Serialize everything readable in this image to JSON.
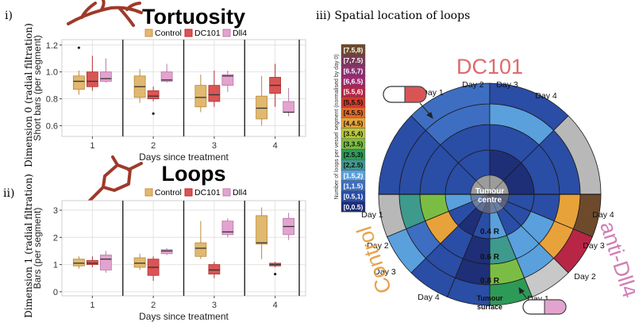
{
  "panel_labels": {
    "i": "i)",
    "ii": "ii)",
    "iii": "iii) Spatial location of loops"
  },
  "dim0_label": "Dimension 0 (radial filtration)",
  "dim1_label": "Dimension 1 (radial filtration)",
  "colors": {
    "Control": "#e0b870",
    "DC101": "#d95555",
    "Dll4": "#e3a3cf",
    "branch": "#9e3a2a",
    "Control_text": "#e8a24a",
    "DC101_text": "#de6a6a",
    "Dll4_text": "#d17fb5"
  },
  "chart_data": [
    {
      "type": "box",
      "title": "Tortuosity",
      "xlabel": "Days since treatment",
      "ylabel": "Short bars (per segment)",
      "ylim": [
        0.52,
        1.24
      ],
      "yticks": [
        0.6,
        0.8,
        1.0,
        1.2
      ],
      "ytick_labels": [
        "0.6",
        "0.8",
        "1.0",
        "1.2"
      ],
      "categories": [
        "1",
        "2",
        "3",
        "4"
      ],
      "legend": [
        "Control",
        "DC101",
        "Dll4"
      ],
      "series": [
        {
          "name": "Control",
          "boxes": [
            {
              "min": 0.83,
              "q1": 0.87,
              "median": 0.93,
              "q3": 0.97,
              "max": 1.01,
              "outliers": [
                1.18
              ]
            },
            {
              "min": 0.77,
              "q1": 0.81,
              "median": 0.89,
              "q3": 0.97,
              "max": 1.02,
              "outliers": []
            },
            {
              "min": 0.7,
              "q1": 0.74,
              "median": 0.81,
              "q3": 0.9,
              "max": 0.98,
              "outliers": []
            },
            {
              "min": 0.6,
              "q1": 0.65,
              "median": 0.73,
              "q3": 0.82,
              "max": 0.97,
              "outliers": []
            }
          ]
        },
        {
          "name": "DC101",
          "boxes": [
            {
              "min": 0.86,
              "q1": 0.89,
              "median": 0.93,
              "q3": 1.0,
              "max": 1.12,
              "outliers": []
            },
            {
              "min": 0.78,
              "q1": 0.8,
              "median": 0.82,
              "q3": 0.86,
              "max": 0.89,
              "outliers": [
                0.69
              ]
            },
            {
              "min": 0.74,
              "q1": 0.78,
              "median": 0.83,
              "q3": 0.9,
              "max": 1.01,
              "outliers": []
            },
            {
              "min": 0.74,
              "q1": 0.84,
              "median": 0.9,
              "q3": 0.96,
              "max": 1.06,
              "outliers": []
            }
          ]
        },
        {
          "name": "Dll4",
          "boxes": [
            {
              "min": 0.92,
              "q1": 0.93,
              "median": 0.95,
              "q3": 1.0,
              "max": 1.1,
              "outliers": []
            },
            {
              "min": 0.92,
              "q1": 0.93,
              "median": 0.94,
              "q3": 1.0,
              "max": 1.06,
              "outliers": []
            },
            {
              "min": 0.85,
              "q1": 0.9,
              "median": 0.97,
              "q3": 0.98,
              "max": 1.01,
              "outliers": []
            },
            {
              "min": 0.67,
              "q1": 0.7,
              "median": 0.7,
              "q3": 0.78,
              "max": 0.88,
              "outliers": []
            }
          ]
        }
      ]
    },
    {
      "type": "box",
      "title": "Loops",
      "xlabel": "Days since treatment",
      "ylabel": "Bars (per segment)",
      "ylim": [
        -0.15,
        3.35
      ],
      "yticks": [
        0,
        1,
        2,
        3
      ],
      "ytick_labels": [
        "0",
        "1",
        "2",
        "3"
      ],
      "categories": [
        "1",
        "2",
        "3",
        "4"
      ],
      "legend": [
        "Control",
        "DC101",
        "Dll4"
      ],
      "series": [
        {
          "name": "Control",
          "boxes": [
            {
              "min": 0.85,
              "q1": 0.95,
              "median": 1.05,
              "q3": 1.2,
              "max": 1.3,
              "outliers": []
            },
            {
              "min": 0.8,
              "q1": 0.9,
              "median": 1.05,
              "q3": 1.25,
              "max": 1.4,
              "outliers": []
            },
            {
              "min": 1.2,
              "q1": 1.3,
              "median": 1.6,
              "q3": 1.8,
              "max": 2.6,
              "outliers": []
            },
            {
              "min": 1.2,
              "q1": 1.75,
              "median": 1.8,
              "q3": 2.8,
              "max": 3.1,
              "outliers": []
            }
          ]
        },
        {
          "name": "DC101",
          "boxes": [
            {
              "min": 0.9,
              "q1": 1.0,
              "median": 1.05,
              "q3": 1.15,
              "max": 1.3,
              "outliers": []
            },
            {
              "min": 0.4,
              "q1": 0.6,
              "median": 0.9,
              "q3": 1.2,
              "max": 1.3,
              "outliers": []
            },
            {
              "min": 0.5,
              "q1": 0.65,
              "median": 0.8,
              "q3": 1.0,
              "max": 1.1,
              "outliers": []
            },
            {
              "min": 0.9,
              "q1": 0.95,
              "median": 1.0,
              "q3": 1.05,
              "max": 1.1,
              "outliers": [
                0.65
              ]
            }
          ]
        },
        {
          "name": "Dll4",
          "boxes": [
            {
              "min": 0.7,
              "q1": 0.8,
              "median": 1.2,
              "q3": 1.35,
              "max": 1.5,
              "outliers": []
            },
            {
              "min": 1.35,
              "q1": 1.4,
              "median": 1.5,
              "q3": 1.55,
              "max": 1.6,
              "outliers": []
            },
            {
              "min": 2.0,
              "q1": 2.1,
              "median": 2.2,
              "q3": 2.6,
              "max": 2.7,
              "outliers": []
            },
            {
              "min": 1.9,
              "q1": 2.1,
              "median": 2.4,
              "q3": 2.7,
              "max": 2.9,
              "outliers": []
            }
          ]
        }
      ]
    },
    {
      "type": "heatmap",
      "title": "iii) Spatial location of loops",
      "colorbar_label": "Number of loops per vessel segment (normalised by day 0)",
      "colorbar_bins": [
        "[0,0.5)",
        "[0.5,1)",
        "[1,1.5)",
        "[1.5,2)",
        "[2,2.5)",
        "[2.5,3)",
        "[3,3.5)",
        "[3.5,4)",
        "[4,4.5)",
        "[4.5,5)",
        "[5,5.5)",
        "[5.5,6)",
        "[6,6.5)",
        "[6.5,7)",
        "[7,7.5)",
        "[7.5,8)"
      ],
      "colorbar_colors": [
        "#1e2f78",
        "#2a4da6",
        "#3e6ec2",
        "#5aa0dd",
        "#3d9a8c",
        "#2e9a57",
        "#7bbd44",
        "#b7c93c",
        "#e8a23a",
        "#e06b2a",
        "#d23a2a",
        "#b82646",
        "#9e2a70",
        "#8a3272",
        "#7a3a58",
        "#6e4a2c"
      ],
      "group_labels": [
        "DC101",
        "anti-Dll4",
        "Control"
      ],
      "radial_labels": [
        "Tumour centre",
        "0.4 R",
        "0.6 R",
        "0.8 R",
        "Tumour surface"
      ],
      "ring_order": "inner to outer: 0-0.2R, 0.2-0.4R, 0.4-0.6R, 0.6-0.8R, 0.8-1.0R",
      "sectors": [
        {
          "group": "DC101",
          "day": "Day 1",
          "rings": [
            "#b0b0b0",
            "#2a4da6",
            "#2a4da6",
            "#2a4da6",
            "#2a4da6"
          ]
        },
        {
          "group": "DC101",
          "day": "Day 2",
          "rings": [
            "#b0b0b0",
            "#2a4da6",
            "#2a4da6",
            "#3e6ec2",
            "#3e6ec2"
          ]
        },
        {
          "group": "DC101",
          "day": "Day 3",
          "rings": [
            "#b0b0b0",
            "#1e2f78",
            "#2a4da6",
            "#5aa0dd",
            "#2a4da6"
          ]
        },
        {
          "group": "DC101",
          "day": "Day 4",
          "rings": [
            "#b0b0b0",
            "#1e2f78",
            "#2a4da6",
            "#2a4da6",
            "#b8b8b8"
          ]
        },
        {
          "group": "anti-Dll4",
          "day": "Day 1",
          "rings": [
            "#3e6ec2",
            "#5aa0dd",
            "#3d9a8c",
            "#7bbd44",
            "#2e9a57"
          ]
        },
        {
          "group": "anti-Dll4",
          "day": "Day 2",
          "rings": [
            "#3e6ec2",
            "#2a4da6",
            "#5aa0dd",
            "#5aa0dd",
            "#c8c8c8"
          ]
        },
        {
          "group": "anti-Dll4",
          "day": "Day 3",
          "rings": [
            "#1e2f78",
            "#2a4da6",
            "#5aa0dd",
            "#e8a23a",
            "#b82646"
          ]
        },
        {
          "group": "anti-Dll4",
          "day": "Day 4",
          "rings": [
            "#1e2f78",
            "#2a4da6",
            "#2a4da6",
            "#e8a23a",
            "#6e4a2c"
          ]
        },
        {
          "group": "Control",
          "day": "Day 1",
          "rings": [
            "#1e2f78",
            "#2a4da6",
            "#1e2f78",
            "#1e2f78",
            "#2a4da6"
          ]
        },
        {
          "group": "Control",
          "day": "Day 2",
          "rings": [
            "#2a4da6",
            "#1e2f78",
            "#2a4da6",
            "#2a4da6",
            "#2a4da6"
          ]
        },
        {
          "group": "Control",
          "day": "Day 3",
          "rings": [
            "#3e6ec2",
            "#2a4da6",
            "#e8a23a",
            "#3e6ec2",
            "#5aa0dd"
          ]
        },
        {
          "group": "Control",
          "day": "Day 4",
          "rings": [
            "#3e6ec2",
            "#5aa0dd",
            "#7bbd44",
            "#3d9a8c",
            "#b8b8b8"
          ]
        }
      ]
    }
  ]
}
